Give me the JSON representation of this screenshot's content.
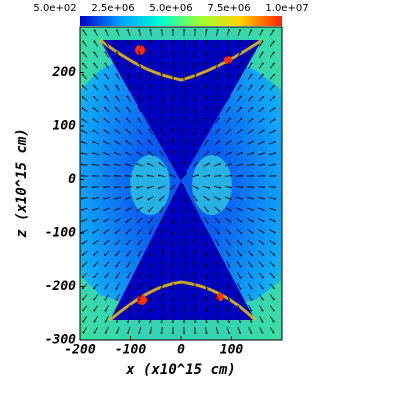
{
  "chart_data": {
    "type": "heatmap",
    "xlabel": "x (x10^15 cm)",
    "ylabel": "z (x10^15 cm)",
    "xlim": [
      -200,
      200
    ],
    "xticks": [
      -200,
      -100,
      0,
      100
    ],
    "ylim": [
      -300,
      285
    ],
    "yticks": [
      -300,
      -200,
      -100,
      0,
      100,
      200
    ],
    "colorbar": {
      "clim": [
        500,
        10000000
      ],
      "ticks": [
        {
          "value": 500,
          "label": "5.0e+02"
        },
        {
          "value": 2500000,
          "label": "2.5e+06"
        },
        {
          "value": 5000000,
          "label": "5.0e+06"
        },
        {
          "value": 7500000,
          "label": "7.5e+06"
        },
        {
          "value": 10000000,
          "label": "1.0e+07"
        }
      ],
      "colors": [
        "#0000c8",
        "#00a0ff",
        "#00ffd0",
        "#a0ff30",
        "#ffd000",
        "#ff2000"
      ]
    }
  }
}
